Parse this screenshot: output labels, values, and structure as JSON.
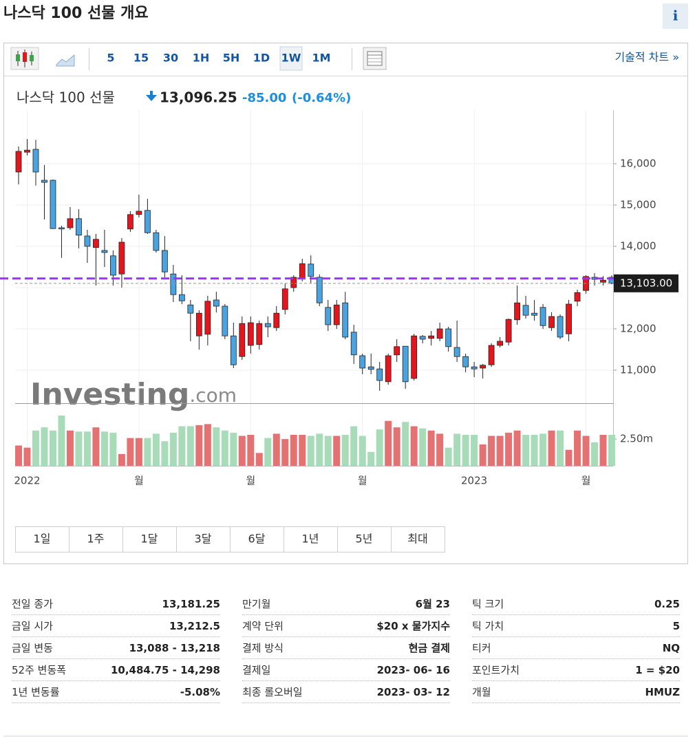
{
  "header": {
    "title": "나스닥 100 선물 개요",
    "info": "i"
  },
  "toolbar": {
    "intervals": [
      "5",
      "15",
      "30",
      "1H",
      "5H",
      "1D",
      "1W",
      "1M"
    ],
    "selected_index": 6,
    "tech_link": "기술적 차트 »"
  },
  "quote": {
    "name": "나스닥 100 선물",
    "price": "13,096.25",
    "change": "-85.00",
    "change_pct": "(-0.64%)"
  },
  "chart_data": {
    "type": "candlestick",
    "watermark": [
      "Investing",
      ".com"
    ],
    "categories": [
      null,
      "2022",
      null,
      null,
      null,
      null,
      null,
      null,
      null,
      null,
      null,
      null,
      null,
      null,
      "월",
      null,
      null,
      null,
      null,
      null,
      null,
      null,
      null,
      null,
      null,
      null,
      null,
      "월",
      null,
      null,
      null,
      null,
      null,
      null,
      null,
      null,
      null,
      null,
      null,
      null,
      "월",
      null,
      null,
      null,
      null,
      null,
      null,
      null,
      null,
      null,
      null,
      null,
      null,
      "2023",
      null,
      null,
      null,
      null,
      null,
      null,
      null,
      null,
      null,
      null,
      null,
      null,
      "월",
      null,
      null,
      null
    ],
    "open": [
      15800,
      16280,
      16350,
      15600,
      15600,
      14450,
      14450,
      14670,
      14250,
      13970,
      13900,
      13770,
      13330,
      14420,
      14770,
      14870,
      14330,
      13900,
      13330,
      12830,
      12580,
      11830,
      11870,
      12700,
      12550,
      11830,
      11330,
      11600,
      11620,
      12130,
      12030,
      12470,
      13000,
      13230,
      13570,
      13250,
      12520,
      12100,
      12630,
      11920,
      11350,
      11080,
      11030,
      10720,
      11370,
      11580,
      10800,
      11820,
      11770,
      11770,
      12000,
      11550,
      11330,
      11080,
      11050,
      11130,
      11600,
      11680,
      12220,
      12570,
      12380,
      12520,
      12030,
      12300,
      11880,
      12670,
      12930,
      13250,
      13130,
      13250
    ],
    "high": [
      16417,
      16600,
      16580,
      15970,
      15620,
      14500,
      14950,
      14900,
      14400,
      14300,
      14400,
      13900,
      14200,
      14850,
      15250,
      15150,
      14400,
      14250,
      13550,
      13300,
      12700,
      12450,
      12800,
      12900,
      12600,
      12150,
      12300,
      12300,
      12200,
      12300,
      12550,
      13100,
      13300,
      13700,
      13780,
      13320,
      12700,
      12700,
      12900,
      12100,
      11400,
      11400,
      11200,
      11400,
      11750,
      11580,
      11880,
      11850,
      11950,
      12150,
      12050,
      12200,
      11400,
      11200,
      11150,
      11650,
      11800,
      12250,
      13050,
      12800,
      12700,
      12600,
      12400,
      12350,
      12700,
      12950,
      13300,
      13350,
      13280,
      13300
    ],
    "low": [
      15500,
      16200,
      15470,
      14650,
      14420,
      13720,
      14400,
      13950,
      13600,
      13050,
      13500,
      13050,
      13000,
      14350,
      14700,
      14300,
      13850,
      13250,
      12650,
      12600,
      11700,
      11500,
      11600,
      12400,
      11750,
      11050,
      11250,
      11400,
      11500,
      11800,
      11950,
      12350,
      12900,
      13150,
      13100,
      12550,
      11950,
      12000,
      11750,
      11150,
      10900,
      10900,
      10500,
      10650,
      11200,
      10550,
      10750,
      11650,
      11600,
      11700,
      11450,
      11200,
      10950,
      10830,
      10800,
      11080,
      11550,
      11600,
      12100,
      12250,
      12200,
      12000,
      11950,
      11750,
      11700,
      12550,
      12850,
      13050,
      13050,
      13080
    ],
    "close": [
      16300,
      16330,
      15800,
      15550,
      14430,
      14420,
      14670,
      14270,
      14000,
      14170,
      13850,
      13300,
      14100,
      14770,
      14850,
      14330,
      13900,
      13380,
      12830,
      12680,
      12380,
      12380,
      12670,
      12550,
      11830,
      11130,
      12130,
      12150,
      12130,
      12050,
      12380,
      12970,
      13250,
      13580,
      13270,
      12630,
      12100,
      12580,
      11800,
      11370,
      11050,
      11020,
      10750,
      11350,
      11570,
      10720,
      11830,
      11750,
      11830,
      12000,
      11570,
      11330,
      11080,
      11030,
      11120,
      11600,
      11700,
      12230,
      12630,
      12330,
      12330,
      12080,
      12300,
      11800,
      12600,
      12880,
      13270,
      13200,
      13180,
      13103
    ],
    "volume": [
      1900000,
      1700000,
      3300000,
      3600000,
      3300000,
      4700000,
      3300000,
      3200000,
      3200000,
      3600000,
      3200000,
      3100000,
      1100000,
      2600000,
      2600000,
      2600000,
      3000000,
      2300000,
      3100000,
      3700000,
      3700000,
      3800000,
      3900000,
      3600000,
      3300000,
      3100000,
      2800000,
      2900000,
      1200000,
      2600000,
      3000000,
      2500000,
      2900000,
      2900000,
      2800000,
      3000000,
      2800000,
      2800000,
      2900000,
      3700000,
      2800000,
      1300000,
      3400000,
      4200000,
      3600000,
      4100000,
      3700000,
      3500000,
      3300000,
      3000000,
      1700000,
      3000000,
      2900000,
      2900000,
      2000000,
      2800000,
      2800000,
      3100000,
      3300000,
      2900000,
      2900000,
      3000000,
      3300000,
      3300000,
      1500000,
      3300000,
      2800000,
      2200000,
      2900000,
      2900000
    ],
    "up_color": "#e3161e",
    "down_color": "#4aa3df",
    "vol_up_color": "#e47272",
    "vol_down_color": "#a8dbb8",
    "ylim": [
      10200,
      16950
    ],
    "yticks": [
      {
        "value": 11000,
        "label": "11,000"
      },
      {
        "value": 12000,
        "label": "12,000"
      },
      {
        "value": 13000,
        "label": "13,000"
      },
      {
        "value": 14000,
        "label": "14,000"
      },
      {
        "value": 15000,
        "label": "15,000"
      },
      {
        "value": 16000,
        "label": "16,000"
      }
    ],
    "vol_ylim": [
      0,
      5600000
    ],
    "vol_yticks": [
      {
        "value": 2500000,
        "label": "2.50m"
      }
    ],
    "last_price": {
      "value": 13103,
      "label": "13,103.00"
    },
    "hline": 13220,
    "hline_color": "#9b30ff",
    "grid": true
  },
  "ranges": [
    "1일",
    "1주",
    "1달",
    "3달",
    "6달",
    "1년",
    "5년",
    "최대"
  ],
  "stats": [
    [
      {
        "label": "전일 종가",
        "value": "13,181.25"
      },
      {
        "label": "금일 시가",
        "value": "13,212.5"
      },
      {
        "label": "금일 변동",
        "value": "13,088 - 13,218"
      },
      {
        "label": "52주 변동폭",
        "value": "10,484.75 - 14,298"
      },
      {
        "label": "1년 변동률",
        "value": "-5.08%"
      }
    ],
    [
      {
        "label": "만기월",
        "value": "6월 23"
      },
      {
        "label": "계약 단위",
        "value": "$20 x 물가지수"
      },
      {
        "label": "결제 방식",
        "value": "현금 결제"
      },
      {
        "label": "결제일",
        "value": "2023- 06- 16"
      },
      {
        "label": "최종 롤오버일",
        "value": "2023- 03- 12"
      }
    ],
    [
      {
        "label": "틱 크기",
        "value": "0.25"
      },
      {
        "label": "틱 가치",
        "value": "5"
      },
      {
        "label": "티커",
        "value": "NQ"
      },
      {
        "label": "포인트가치",
        "value": "1 = $20"
      },
      {
        "label": "개월",
        "value": "HMUZ"
      }
    ]
  ]
}
